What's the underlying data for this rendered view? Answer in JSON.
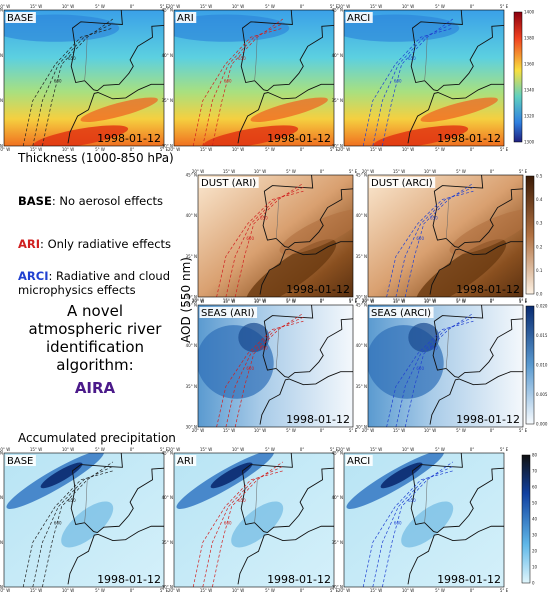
{
  "lon_ticks": [
    "20° W",
    "15° W",
    "10° W",
    "5° W",
    "0°",
    "5° E"
  ],
  "lat_ticks": [
    "45° N",
    "40° N",
    "35° N",
    "30° N"
  ],
  "contour_labels": [
    "600",
    "650"
  ],
  "thickness": {
    "title": "Thickness (1000-850 hPa)",
    "maps": [
      {
        "label": "BASE",
        "date": "1998-01-12"
      },
      {
        "label": "ARI",
        "date": "1998-01-12"
      },
      {
        "label": "ARCI",
        "date": "1998-01-12"
      }
    ],
    "colorbar": [
      "1400",
      "1380",
      "1360",
      "1340",
      "1320",
      "1300"
    ]
  },
  "aod": {
    "axis_label": "AOD (550 nm)",
    "maps": [
      {
        "label": "DUST (ARI)",
        "date": "1998-01-12"
      },
      {
        "label": "DUST (ARCI)",
        "date": "1998-01-12"
      },
      {
        "label": "SEAS (ARI)",
        "date": "1998-01-12"
      },
      {
        "label": "SEAS (ARCI)",
        "date": "1998-01-12"
      }
    ],
    "dust_colorbar": [
      "0.5",
      "0.4",
      "0.3",
      "0.2",
      "0.1",
      "0.0"
    ],
    "seas_colorbar": [
      "0.020",
      "0.015",
      "0.010",
      "0.005",
      "0.000"
    ]
  },
  "precipitation": {
    "title": "Accumulated precipitation",
    "maps": [
      {
        "label": "BASE",
        "date": "1998-01-12"
      },
      {
        "label": "ARI",
        "date": "1998-01-12"
      },
      {
        "label": "ARCI",
        "date": "1998-01-12"
      }
    ],
    "colorbar": [
      "80",
      "70",
      "60",
      "50",
      "40",
      "30",
      "20",
      "10",
      "0"
    ]
  },
  "legend": [
    {
      "key": "BASE",
      "text": ": No aerosol effects"
    },
    {
      "key": "ARI",
      "text": ": Only radiative effects"
    },
    {
      "key": "ARCI",
      "text": ": Radiative and cloud",
      "text2": "microphysics effects"
    }
  ],
  "algorithm": {
    "lines": [
      "A novel",
      "atmospheric river",
      "identification",
      "algorithm:"
    ],
    "name": "AIRA"
  }
}
